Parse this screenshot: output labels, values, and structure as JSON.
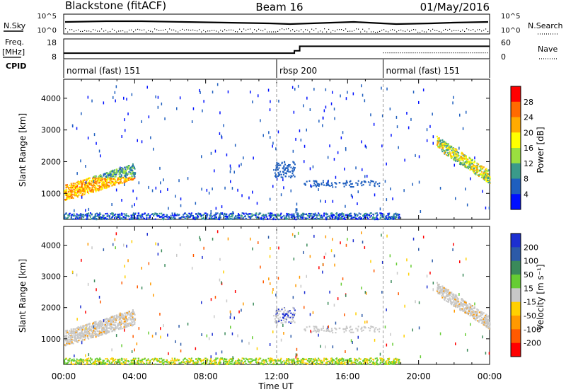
{
  "header": {
    "station": "Blackstone (fitACF)",
    "beam": "Beam 16",
    "date": "01/May/2016"
  },
  "labels": {
    "nsky": "N.Sky",
    "nsearch": "N.Search",
    "freq_line1": "Freq.",
    "freq_line2": "[MHz]",
    "nave": "Nave",
    "cpid": "CPID"
  },
  "noise_panel": {
    "y_top_tick": "10^5",
    "y_bottom_tick": "10^0"
  },
  "freq_panel": {
    "left_ticks": [
      "18",
      "8"
    ],
    "right_ticks": [
      "60",
      "0"
    ],
    "freq_steps": [
      {
        "hour": 0.0,
        "freq_mhz": 10.8
      },
      {
        "hour": 13.0,
        "freq_mhz": 12.0
      },
      {
        "hour": 13.3,
        "freq_mhz": 14.3
      }
    ],
    "nave_level": 18
  },
  "cpid_panel": {
    "segments": [
      {
        "start_hour": 0.0,
        "label": "normal (fast) 151"
      },
      {
        "start_hour": 12.0,
        "label": "rbsp 200"
      },
      {
        "start_hour": 18.0,
        "label": "normal (fast) 151"
      }
    ]
  },
  "x_axis": {
    "title": "Time UT",
    "range_hours": [
      0,
      24
    ],
    "ticks": [
      "00:00",
      "04:00",
      "08:00",
      "12:00",
      "16:00",
      "20:00",
      "00:00"
    ]
  },
  "panels": [
    {
      "ylabel": "Slant Range [km]",
      "yticks": [
        "4000",
        "3000",
        "2000",
        "1000"
      ],
      "colorbar": {
        "title": "Power [dB]",
        "ticks": [
          "28",
          "24",
          "20",
          "16",
          "12",
          "8",
          "4"
        ],
        "colors": [
          "#ff0000",
          "#ff6a00",
          "#ffaa00",
          "#ffff00",
          "#9ae040",
          "#3a9a8a",
          "#1f5fbf",
          "#0010ff"
        ]
      }
    },
    {
      "ylabel": "Slant Range [km]",
      "yticks": [
        "4000",
        "3000",
        "2000",
        "1000"
      ],
      "colorbar": {
        "title": "Velocity [m s⁻¹]",
        "ticks": [
          "200",
          "100",
          "50",
          "15",
          "-15",
          "-50",
          "-100",
          "-200"
        ],
        "colors": [
          "#1c2fd1",
          "#2c5aa8",
          "#3a8a5a",
          "#66cc33",
          "#c8c8c8",
          "#ffd000",
          "#ff9900",
          "#ff5a00",
          "#ff0000"
        ]
      }
    }
  ],
  "chart_data": {
    "type": "heatmap",
    "title": "Blackstone (fitACF) Beam 16 01/May/2016",
    "xlabel": "Time UT",
    "ylabel": "Slant Range [km]",
    "xlim_hours": [
      0,
      24
    ],
    "ylim_km": [
      180,
      4600
    ],
    "scatter_regions": [
      {
        "name": "near-range band",
        "start_hour": 0.0,
        "end_hour": 19.0,
        "range_km": [
          180,
          380
        ]
      },
      {
        "name": "morning echo",
        "start_hour": 0.0,
        "end_hour": 4.0,
        "range_km": [
          900,
          2100
        ]
      },
      {
        "name": "midday patch",
        "start_hour": 11.8,
        "end_hour": 13.0,
        "range_km": [
          1500,
          2000
        ]
      },
      {
        "name": "afternoon trail",
        "start_hour": 13.5,
        "end_hour": 17.8,
        "range_km": [
          1200,
          1400
        ]
      },
      {
        "name": "evening echo",
        "start_hour": 21.0,
        "end_hour": 24.0,
        "range_km": [
          1300,
          2700
        ]
      }
    ]
  }
}
